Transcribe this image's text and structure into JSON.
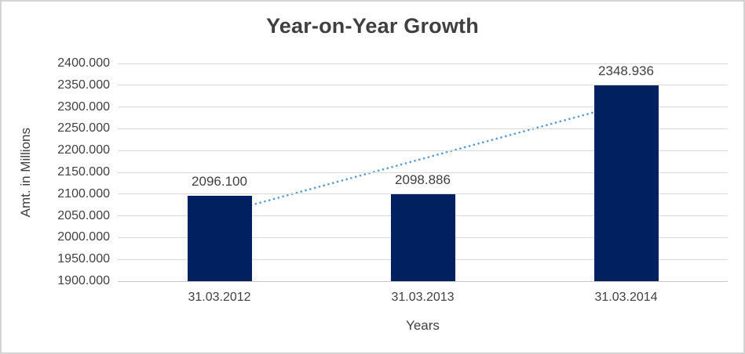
{
  "chart_data": {
    "type": "bar",
    "title": "Year-on-Year Growth",
    "xlabel": "Years",
    "ylabel": "Amt. in Millions",
    "categories": [
      "31.03.2012",
      "31.03.2013",
      "31.03.2014"
    ],
    "values": [
      2096.1,
      2098.886,
      2348.936
    ],
    "value_labels": [
      "2096.100",
      "2098.886",
      "2348.936"
    ],
    "y_ticks": [
      "2400.000",
      "2350.000",
      "2300.000",
      "2250.000",
      "2200.000",
      "2150.000",
      "2100.000",
      "2050.000",
      "2000.000",
      "1950.000",
      "1900.000"
    ],
    "ylim": [
      1900,
      2400
    ],
    "grid": true,
    "legend_visible": false,
    "trendline": {
      "kind": "linear",
      "style": "dotted"
    },
    "colors": {
      "bar": "#002060",
      "trendline": "#5b9bd5",
      "gridline": "#d9d9d9",
      "baseline": "#c6c6c6",
      "text": "#404040",
      "title_text": "#3f3f3f",
      "border": "#d3d3d3",
      "background": "#ffffff"
    }
  }
}
